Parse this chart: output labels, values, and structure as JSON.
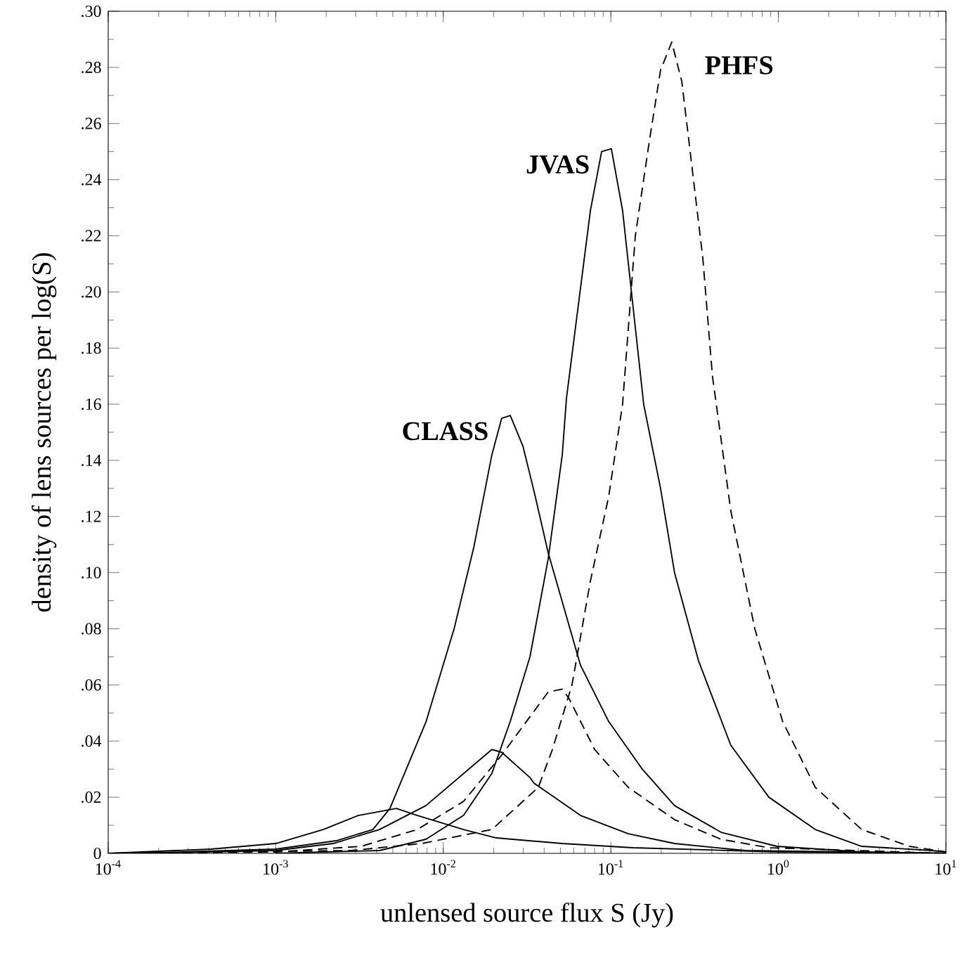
{
  "chart_data": {
    "type": "line",
    "xlabel": "unlensed source flux S (Jy)",
    "ylabel": "density of lens sources per log(S)",
    "log": "x",
    "xlim": [
      0.0001,
      10
    ],
    "ylim": [
      0,
      0.3
    ],
    "xticks": [
      {
        "value": 0.0001,
        "label": "10$^{-4}$"
      },
      {
        "value": 0.001,
        "label": "10$^{-3}$"
      },
      {
        "value": 0.01,
        "label": "10$^{-2}$"
      },
      {
        "value": 0.1,
        "label": "10$^{-1}$"
      },
      {
        "value": 1,
        "label": "10$^{0}$"
      },
      {
        "value": 10,
        "label": "10$^{1}$"
      }
    ],
    "yticks": [
      0,
      {
        "value": 0.02,
        "label": ".02"
      },
      {
        "value": 0.04,
        "label": ".04"
      },
      {
        "value": 0.06,
        "label": ".06"
      },
      {
        "value": 0.08,
        "label": ".08"
      },
      {
        "value": 0.1,
        "label": ".10"
      },
      {
        "value": 0.12,
        "label": ".12"
      },
      {
        "value": 0.14,
        "label": ".14"
      },
      {
        "value": 0.16,
        "label": ".16"
      },
      {
        "value": 0.18,
        "label": ".18"
      },
      {
        "value": 0.2,
        "label": ".20"
      },
      {
        "value": 0.22,
        "label": ".22"
      },
      {
        "value": 0.24,
        "label": ".24"
      },
      {
        "value": 0.26,
        "label": ".26"
      },
      {
        "value": 0.28,
        "label": ".28"
      },
      {
        "value": 0.3,
        "label": ".30"
      }
    ],
    "grid": false,
    "legend": false,
    "marker": "none",
    "series": [
      {
        "name": "CLASS",
        "color": "#000000",
        "line_style": "solid",
        "x": [
          0.0001,
          0.00028,
          0.001,
          0.0023,
          0.0038,
          0.0048,
          0.0079,
          0.0116,
          0.0152,
          0.0195,
          0.0223,
          0.0251,
          0.0299,
          0.0348,
          0.0423,
          0.0659,
          0.097,
          0.154,
          0.24,
          0.455,
          0.98,
          3.14,
          10
        ],
        "values": [
          0,
          0.0005,
          0.0015,
          0.0045,
          0.0085,
          0.016,
          0.047,
          0.08,
          0.109,
          0.142,
          0.155,
          0.156,
          0.145,
          0.129,
          0.107,
          0.067,
          0.047,
          0.03,
          0.017,
          0.0075,
          0.0025,
          0.0005,
          0
        ]
      },
      {
        "color": "#000000",
        "line_style": "solid",
        "x": [
          0.0001,
          0.00041,
          0.001,
          0.00192,
          0.00311,
          0.00525,
          0.007,
          0.0132,
          0.0207,
          0.0513,
          0.135,
          1,
          10
        ],
        "values": [
          0,
          0.0015,
          0.0035,
          0.0085,
          0.0135,
          0.016,
          0.0135,
          0.0085,
          0.0055,
          0.0035,
          0.002,
          0.0005,
          0
        ]
      },
      {
        "name": "JVAS",
        "color": "#000000",
        "line_style": "solid",
        "x": [
          0.001,
          0.00416,
          0.00787,
          0.0132,
          0.0195,
          0.0251,
          0.0329,
          0.0423,
          0.0513,
          0.0543,
          0.0755,
          0.0881,
          0.1007,
          0.1175,
          0.157,
          0.198,
          0.24,
          0.334,
          0.52,
          0.877,
          1.66,
          3.14,
          8.25,
          10
        ],
        "values": [
          0,
          0.001,
          0.005,
          0.0135,
          0.0285,
          0.047,
          0.07,
          0.105,
          0.142,
          0.162,
          0.229,
          0.25,
          0.251,
          0.229,
          0.16,
          0.13,
          0.1,
          0.0685,
          0.0385,
          0.02,
          0.0085,
          0.0025,
          0.001,
          0.0005
        ]
      },
      {
        "color": "#000000",
        "line_style": "solid",
        "x": [
          0.000156,
          0.001,
          0.0022,
          0.00416,
          0.00787,
          0.0195,
          0.0223,
          0.0329,
          0.0348,
          0.0659,
          0.127,
          0.24,
          0.631,
          10
        ],
        "values": [
          0,
          0.001,
          0.0035,
          0.0085,
          0.017,
          0.037,
          0.036,
          0.027,
          0.025,
          0.0135,
          0.007,
          0.0035,
          0.001,
          0
        ]
      },
      {
        "name": "PHFS",
        "color": "#000000",
        "line_style": "dashed",
        "x": [
          0.0001,
          0.00283,
          0.00743,
          0.0195,
          0.0369,
          0.0448,
          0.0586,
          0.0755,
          0.097,
          0.1175,
          0.14,
          0.17,
          0.198,
          0.231,
          0.265,
          0.292,
          0.354,
          0.404,
          0.52,
          0.723,
          1.06,
          1.66,
          3.14,
          6.05,
          10
        ],
        "values": [
          0,
          0.001,
          0.0035,
          0.0085,
          0.0235,
          0.037,
          0.06,
          0.097,
          0.127,
          0.16,
          0.22,
          0.254,
          0.279,
          0.289,
          0.275,
          0.254,
          0.212,
          0.17,
          0.122,
          0.08,
          0.047,
          0.0235,
          0.0085,
          0.0025,
          0.0005
        ]
      },
      {
        "color": "#000000",
        "line_style": "dashed",
        "x": [
          0.0001,
          0.001,
          0.00324,
          0.007,
          0.0132,
          0.0223,
          0.0423,
          0.0513,
          0.0565,
          0.08,
          0.127,
          0.24,
          0.455,
          0.877,
          10
        ],
        "values": [
          0,
          0.0005,
          0.0025,
          0.0085,
          0.0185,
          0.035,
          0.0575,
          0.0585,
          0.055,
          0.037,
          0.0235,
          0.012,
          0.005,
          0.002,
          0
        ]
      }
    ]
  }
}
